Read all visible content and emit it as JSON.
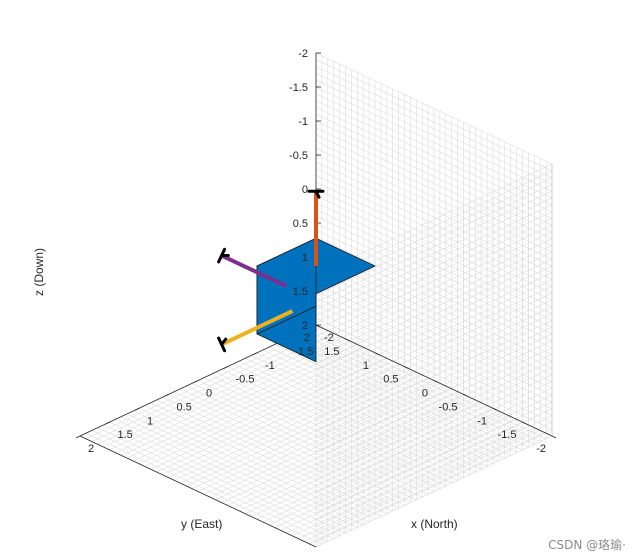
{
  "chart_data": {
    "type": "3d-scene",
    "x_axis": {
      "label": "x (North)",
      "lim": [
        -2,
        2
      ],
      "ticks": [
        "-2",
        "-1.5",
        "-1",
        "-0.5",
        "0",
        "0.5",
        "1",
        "1.5",
        "2"
      ]
    },
    "y_axis": {
      "label": "y (East)",
      "lim": [
        -2,
        2
      ],
      "ticks": [
        "-2",
        "-1.5",
        "-1",
        "-0.5",
        "0",
        "0.5",
        "1",
        "1.5",
        "2"
      ]
    },
    "z_axis": {
      "label": "z (Down)",
      "lim": [
        -2,
        2
      ],
      "reversed": true,
      "ticks": [
        "-2",
        "-1.5",
        "-1",
        "-0.5",
        "0",
        "0.5",
        "1",
        "1.5",
        "2"
      ]
    },
    "grid": true,
    "box": {
      "color": "#0072BD",
      "x": [
        -0.5,
        0.5
      ],
      "y": [
        -0.5,
        0.5
      ],
      "z": [
        -0.5,
        0.5
      ]
    },
    "axes_vectors": [
      {
        "axis": "x",
        "color": "#EDB120",
        "from": [
          0.4,
          0,
          0
        ],
        "to": [
          1.6,
          0,
          0
        ]
      },
      {
        "axis": "y",
        "color": "#7E2F8E",
        "from": [
          0,
          0.5,
          0
        ],
        "to": [
          0,
          1.6,
          0
        ]
      },
      {
        "axis": "z",
        "color": "#D95319",
        "from": [
          0,
          0,
          -0.5
        ],
        "to": [
          0,
          0,
          -1.6
        ]
      }
    ]
  },
  "watermark": "CSDN @珞瑜·"
}
